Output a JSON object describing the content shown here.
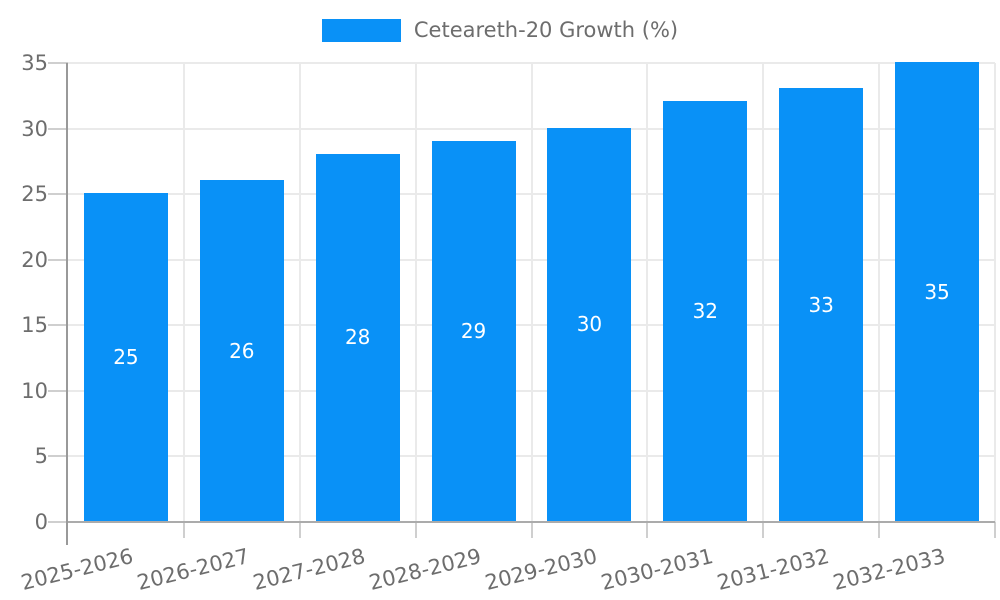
{
  "chart_data": {
    "type": "bar",
    "title": "",
    "xlabel": "",
    "ylabel": "",
    "legend": {
      "position": "top",
      "entries": [
        {
          "label": "Ceteareth-20 Growth (%)",
          "color": "#0991F7"
        }
      ]
    },
    "categories": [
      "2025-2026",
      "2026-2027",
      "2027-2028",
      "2028-2029",
      "2029-2030",
      "2030-2031",
      "2031-2032",
      "2032-2033"
    ],
    "series": [
      {
        "name": "Ceteareth-20 Growth (%)",
        "values": [
          25,
          26,
          28,
          29,
          30,
          32,
          33,
          35
        ]
      }
    ],
    "value_labels": {
      "visible": true,
      "position": "center",
      "color": "#FFFFFF"
    },
    "ylim": [
      0,
      35
    ],
    "yticks": [
      0,
      5,
      10,
      15,
      20,
      25,
      30,
      35
    ],
    "grid": true,
    "x_label_rotation_deg": -14,
    "colors": {
      "bar": "#0991F7",
      "grid": "#EAEAEA",
      "tick": "#CFCFCF",
      "axis_y": "#999999",
      "axis_x": "#ABABAB",
      "text": "#6D6D6D",
      "value_text": "#FFFFFF",
      "background": "#FFFFFF"
    }
  }
}
